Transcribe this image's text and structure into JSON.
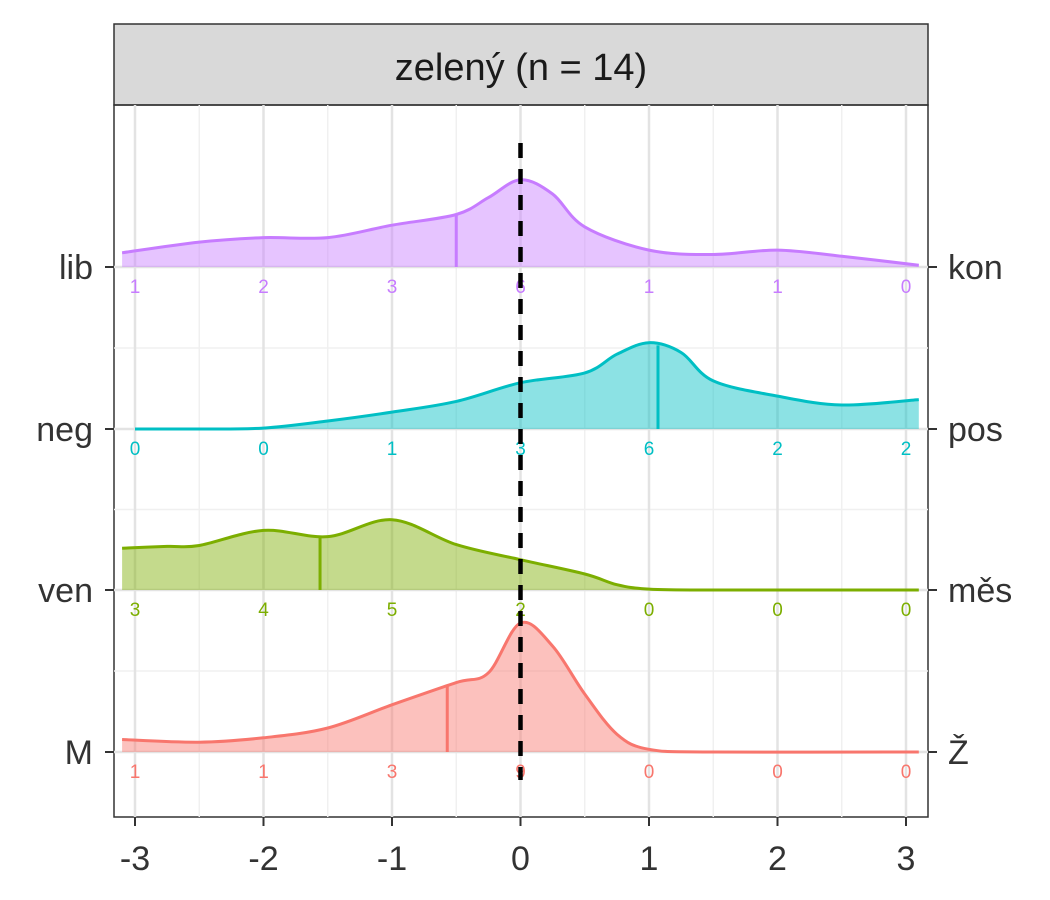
{
  "chart_data": {
    "type": "ridgeline",
    "panel_title": "zelený (n = 14)",
    "x_ticks": [
      -3,
      -2,
      -1,
      0,
      1,
      2,
      3
    ],
    "x_tick_labels": [
      "-3",
      "-2",
      "-1",
      "0",
      "1",
      "2",
      "3"
    ],
    "xlim": [
      -3.1,
      3.1
    ],
    "reference_line_x": 0,
    "count_positions": [
      -3,
      -2,
      -1,
      0,
      1,
      2,
      3
    ],
    "grid": true,
    "series": [
      {
        "left_label": "lib",
        "right_label": "kon",
        "color": "#C77CFF",
        "mean": -0.5,
        "counts": [
          1,
          2,
          3,
          6,
          1,
          1,
          0
        ],
        "density": [
          [
            -3.1,
            0.16
          ],
          [
            -2.5,
            0.28
          ],
          [
            -2.0,
            0.33
          ],
          [
            -1.5,
            0.33
          ],
          [
            -1.0,
            0.47
          ],
          [
            -0.5,
            0.59
          ],
          [
            -0.25,
            0.78
          ],
          [
            0.0,
            0.98
          ],
          [
            0.25,
            0.82
          ],
          [
            0.5,
            0.45
          ],
          [
            1.0,
            0.19
          ],
          [
            1.5,
            0.14
          ],
          [
            2.0,
            0.19
          ],
          [
            2.5,
            0.12
          ],
          [
            3.1,
            0.02
          ]
        ]
      },
      {
        "left_label": "neg",
        "right_label": "pos",
        "color": "#00BFC4",
        "mean": 1.07,
        "counts": [
          0,
          0,
          1,
          3,
          6,
          2,
          2
        ],
        "density": [
          [
            -3.0,
            0.0
          ],
          [
            -2.5,
            0.0
          ],
          [
            -2.0,
            0.01
          ],
          [
            -1.5,
            0.09
          ],
          [
            -1.0,
            0.19
          ],
          [
            -0.5,
            0.31
          ],
          [
            0.0,
            0.52
          ],
          [
            0.5,
            0.63
          ],
          [
            0.75,
            0.84
          ],
          [
            1.0,
            0.97
          ],
          [
            1.25,
            0.86
          ],
          [
            1.5,
            0.54
          ],
          [
            2.0,
            0.37
          ],
          [
            2.5,
            0.27
          ],
          [
            3.1,
            0.33
          ]
        ]
      },
      {
        "left_label": "ven",
        "right_label": "měs",
        "color": "#7CAE00",
        "mean": -1.56,
        "counts": [
          3,
          4,
          5,
          2,
          0,
          0,
          0
        ],
        "density": [
          [
            -3.1,
            0.47
          ],
          [
            -2.75,
            0.49
          ],
          [
            -2.5,
            0.5
          ],
          [
            -2.0,
            0.67
          ],
          [
            -1.5,
            0.6
          ],
          [
            -1.0,
            0.79
          ],
          [
            -0.5,
            0.51
          ],
          [
            0.0,
            0.34
          ],
          [
            0.5,
            0.18
          ],
          [
            0.75,
            0.06
          ],
          [
            1.0,
            0.01
          ],
          [
            1.5,
            0.0
          ],
          [
            3.1,
            0.0
          ]
        ]
      },
      {
        "left_label": "M",
        "right_label": "Ž",
        "color": "#F8766D",
        "mean": -0.57,
        "counts": [
          1,
          1,
          3,
          9,
          0,
          0,
          0
        ],
        "density": [
          [
            -3.1,
            0.14
          ],
          [
            -2.5,
            0.11
          ],
          [
            -2.0,
            0.16
          ],
          [
            -1.5,
            0.27
          ],
          [
            -1.0,
            0.53
          ],
          [
            -0.5,
            0.78
          ],
          [
            -0.25,
            0.89
          ],
          [
            0.0,
            1.45
          ],
          [
            0.25,
            1.19
          ],
          [
            0.5,
            0.65
          ],
          [
            0.75,
            0.2
          ],
          [
            1.0,
            0.03
          ],
          [
            1.5,
            0.0
          ],
          [
            3.1,
            0.0
          ]
        ]
      }
    ]
  }
}
